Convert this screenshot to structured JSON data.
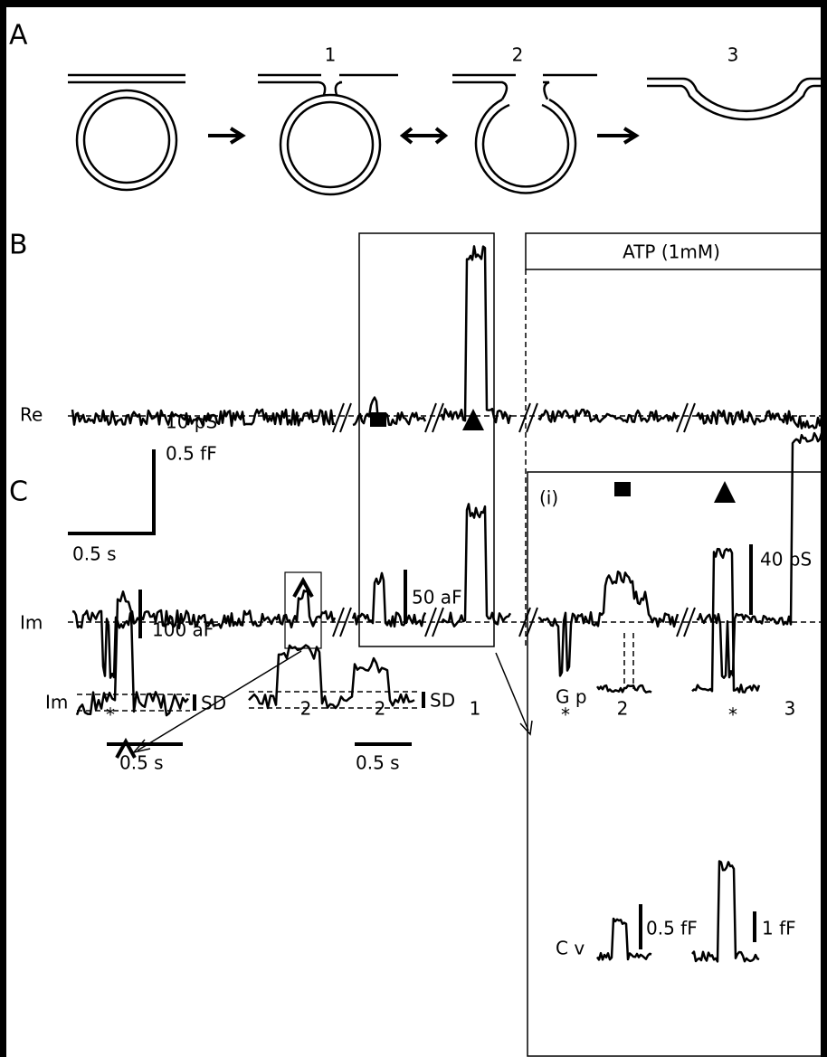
{
  "panels": {
    "a": {
      "label": "A",
      "steps": [
        "1",
        "2",
        "3"
      ]
    },
    "b": {
      "label": "B",
      "treatment": "ATP (1mM)",
      "traces": [
        "Re",
        "Im"
      ],
      "scale": {
        "conductance": "10 pS",
        "capacitance": "0.5 fF",
        "time": "0.5 s"
      },
      "events": [
        "*",
        "2",
        "2",
        "1",
        "*",
        "2",
        "*",
        "3"
      ]
    },
    "c": {
      "label": "C",
      "trace": "Im",
      "left": {
        "scale": "100 aF",
        "noise": "SD",
        "time": "0.5 s"
      },
      "right": {
        "scale": "50 aF",
        "noise": "SD",
        "time": "0.5 s"
      },
      "inset": {
        "label": "(i)",
        "gp": "G p",
        "cv": "C v",
        "gp_scale": "40 pS",
        "cv_scale_left": "0.5 fF",
        "cv_scale_right": "1 fF"
      }
    }
  }
}
